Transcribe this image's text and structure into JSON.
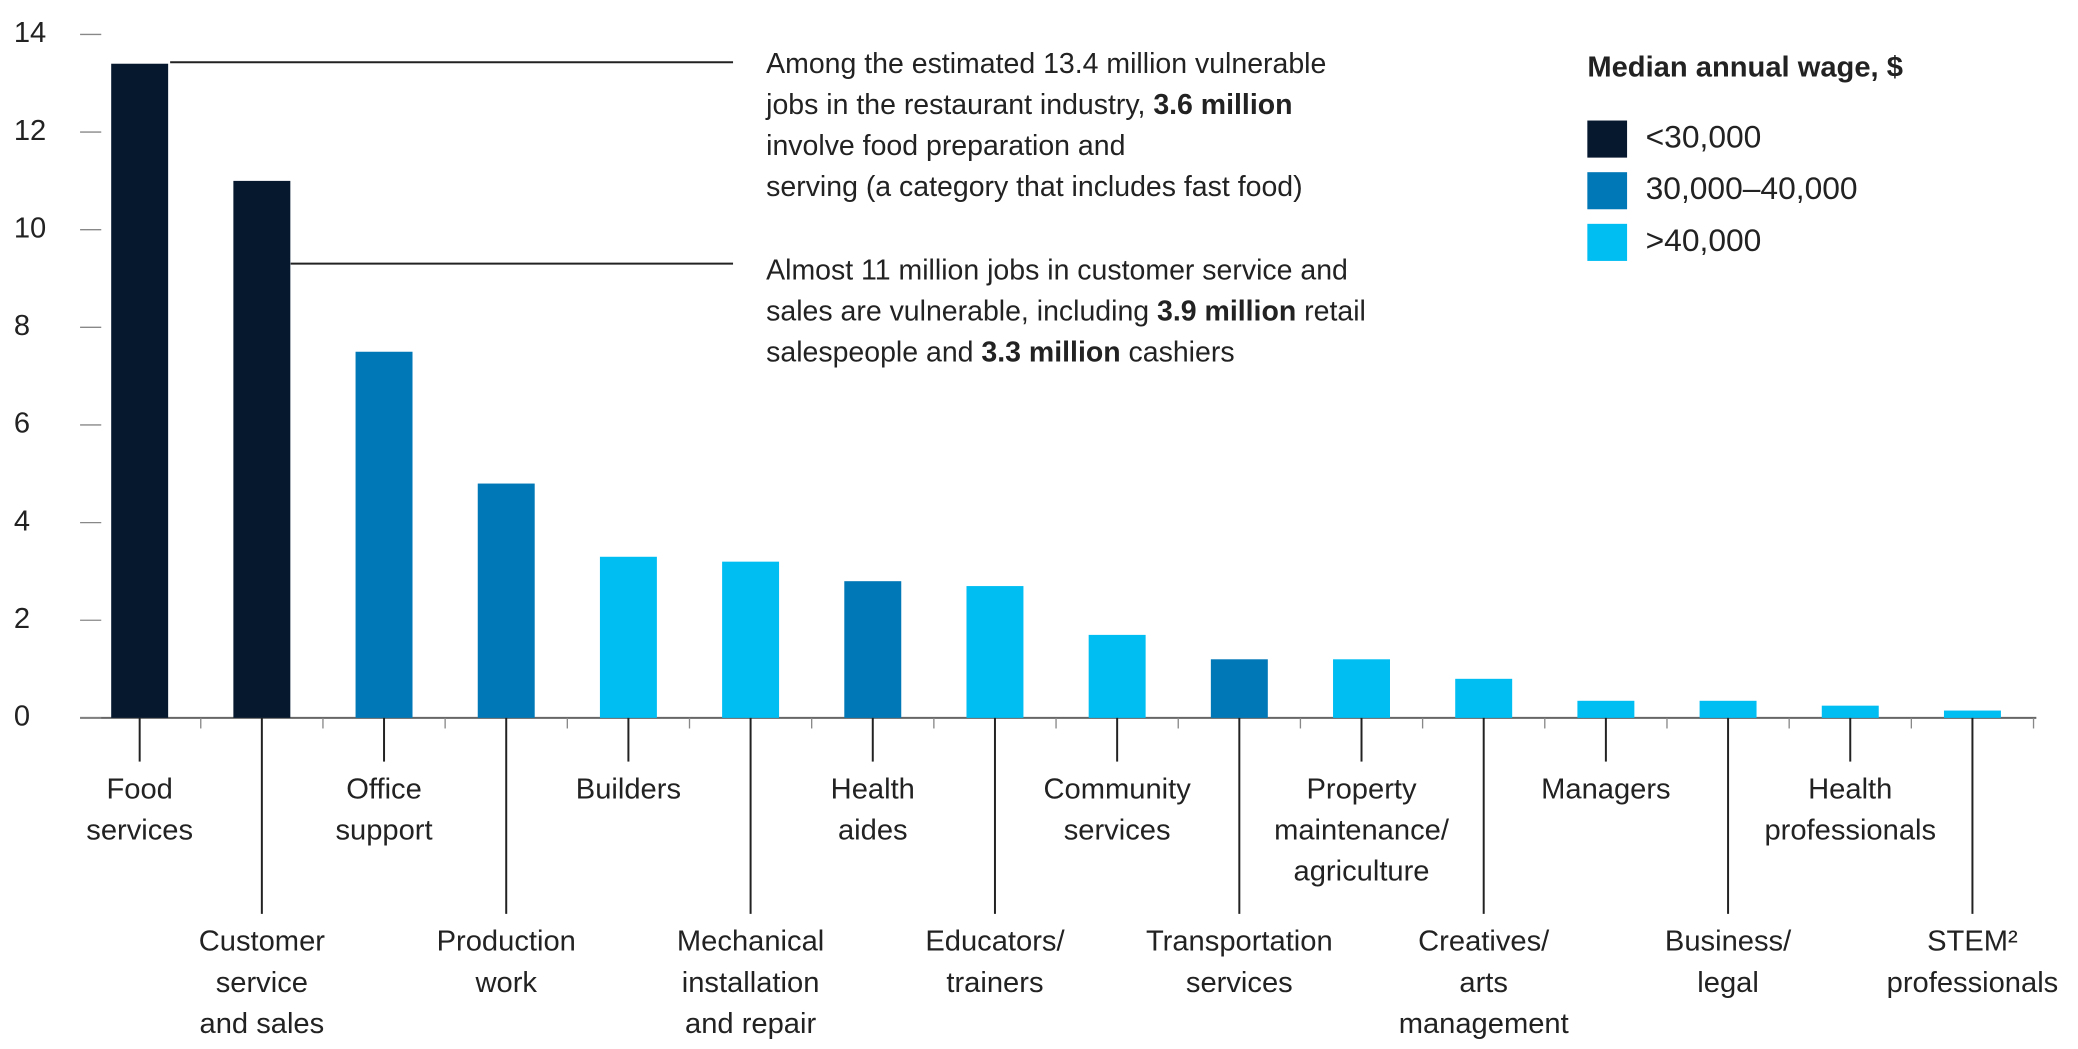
{
  "chart_data": {
    "type": "bar",
    "categories": [
      [
        "Food",
        "services"
      ],
      [
        "Customer",
        "service",
        "and sales"
      ],
      [
        "Office",
        "support"
      ],
      [
        "Production",
        "work"
      ],
      [
        "Builders"
      ],
      [
        "Mechanical",
        "installation",
        "and repair"
      ],
      [
        "Health",
        "aides"
      ],
      [
        "Educators/",
        "trainers"
      ],
      [
        "Community",
        "services"
      ],
      [
        "Transportation",
        "services"
      ],
      [
        "Property",
        "maintenance/",
        "agriculture"
      ],
      [
        "Creatives/",
        "arts",
        "management"
      ],
      [
        "Managers"
      ],
      [
        "Business/",
        "legal"
      ],
      [
        "Health",
        "professionals"
      ],
      [
        "STEM²",
        "professionals"
      ]
    ],
    "values": [
      13.4,
      11,
      7.5,
      4.8,
      3.3,
      3.2,
      2.8,
      2.7,
      1.7,
      1.2,
      1.2,
      0.8,
      0.35,
      0.35,
      0.25,
      0.15
    ],
    "colors": [
      "#06182e",
      "#06182e",
      "#0077b6",
      "#0077b6",
      "#00bdf2",
      "#00bdf2",
      "#0077b6",
      "#00bdf2",
      "#00bdf2",
      "#0077b6",
      "#00bdf2",
      "#00bdf2",
      "#00bdf2",
      "#00bdf2",
      "#00bdf2",
      "#00bdf2"
    ],
    "ylim": [
      0,
      14
    ],
    "yticks": [
      0,
      2,
      4,
      6,
      8,
      10,
      12,
      14
    ],
    "legend": {
      "title": "Median annual wage, $",
      "items": [
        {
          "name": "<30,000",
          "color": "#06182e"
        },
        {
          "name": "30,000–40,000",
          "color": "#0077b6"
        },
        {
          "name": ">40,000",
          "color": "#00bdf2"
        }
      ]
    },
    "annotations": [
      {
        "lines": [
          [
            "Among the estimated 13.4 million vulnerable"
          ],
          [
            "jobs in the restaurant industry, ",
            {
              "bold": "3.6 million"
            }
          ],
          [
            "involve food preparation and"
          ],
          [
            "serving (a category that includes fast food)"
          ]
        ]
      },
      {
        "lines": [
          [
            "Almost 11 million jobs in customer service and"
          ],
          [
            "sales are vulnerable, including ",
            {
              "bold": "3.9 million"
            },
            " retail"
          ],
          [
            "salespeople and ",
            {
              "bold": "3.3 million"
            },
            " cashiers"
          ]
        ]
      }
    ]
  }
}
